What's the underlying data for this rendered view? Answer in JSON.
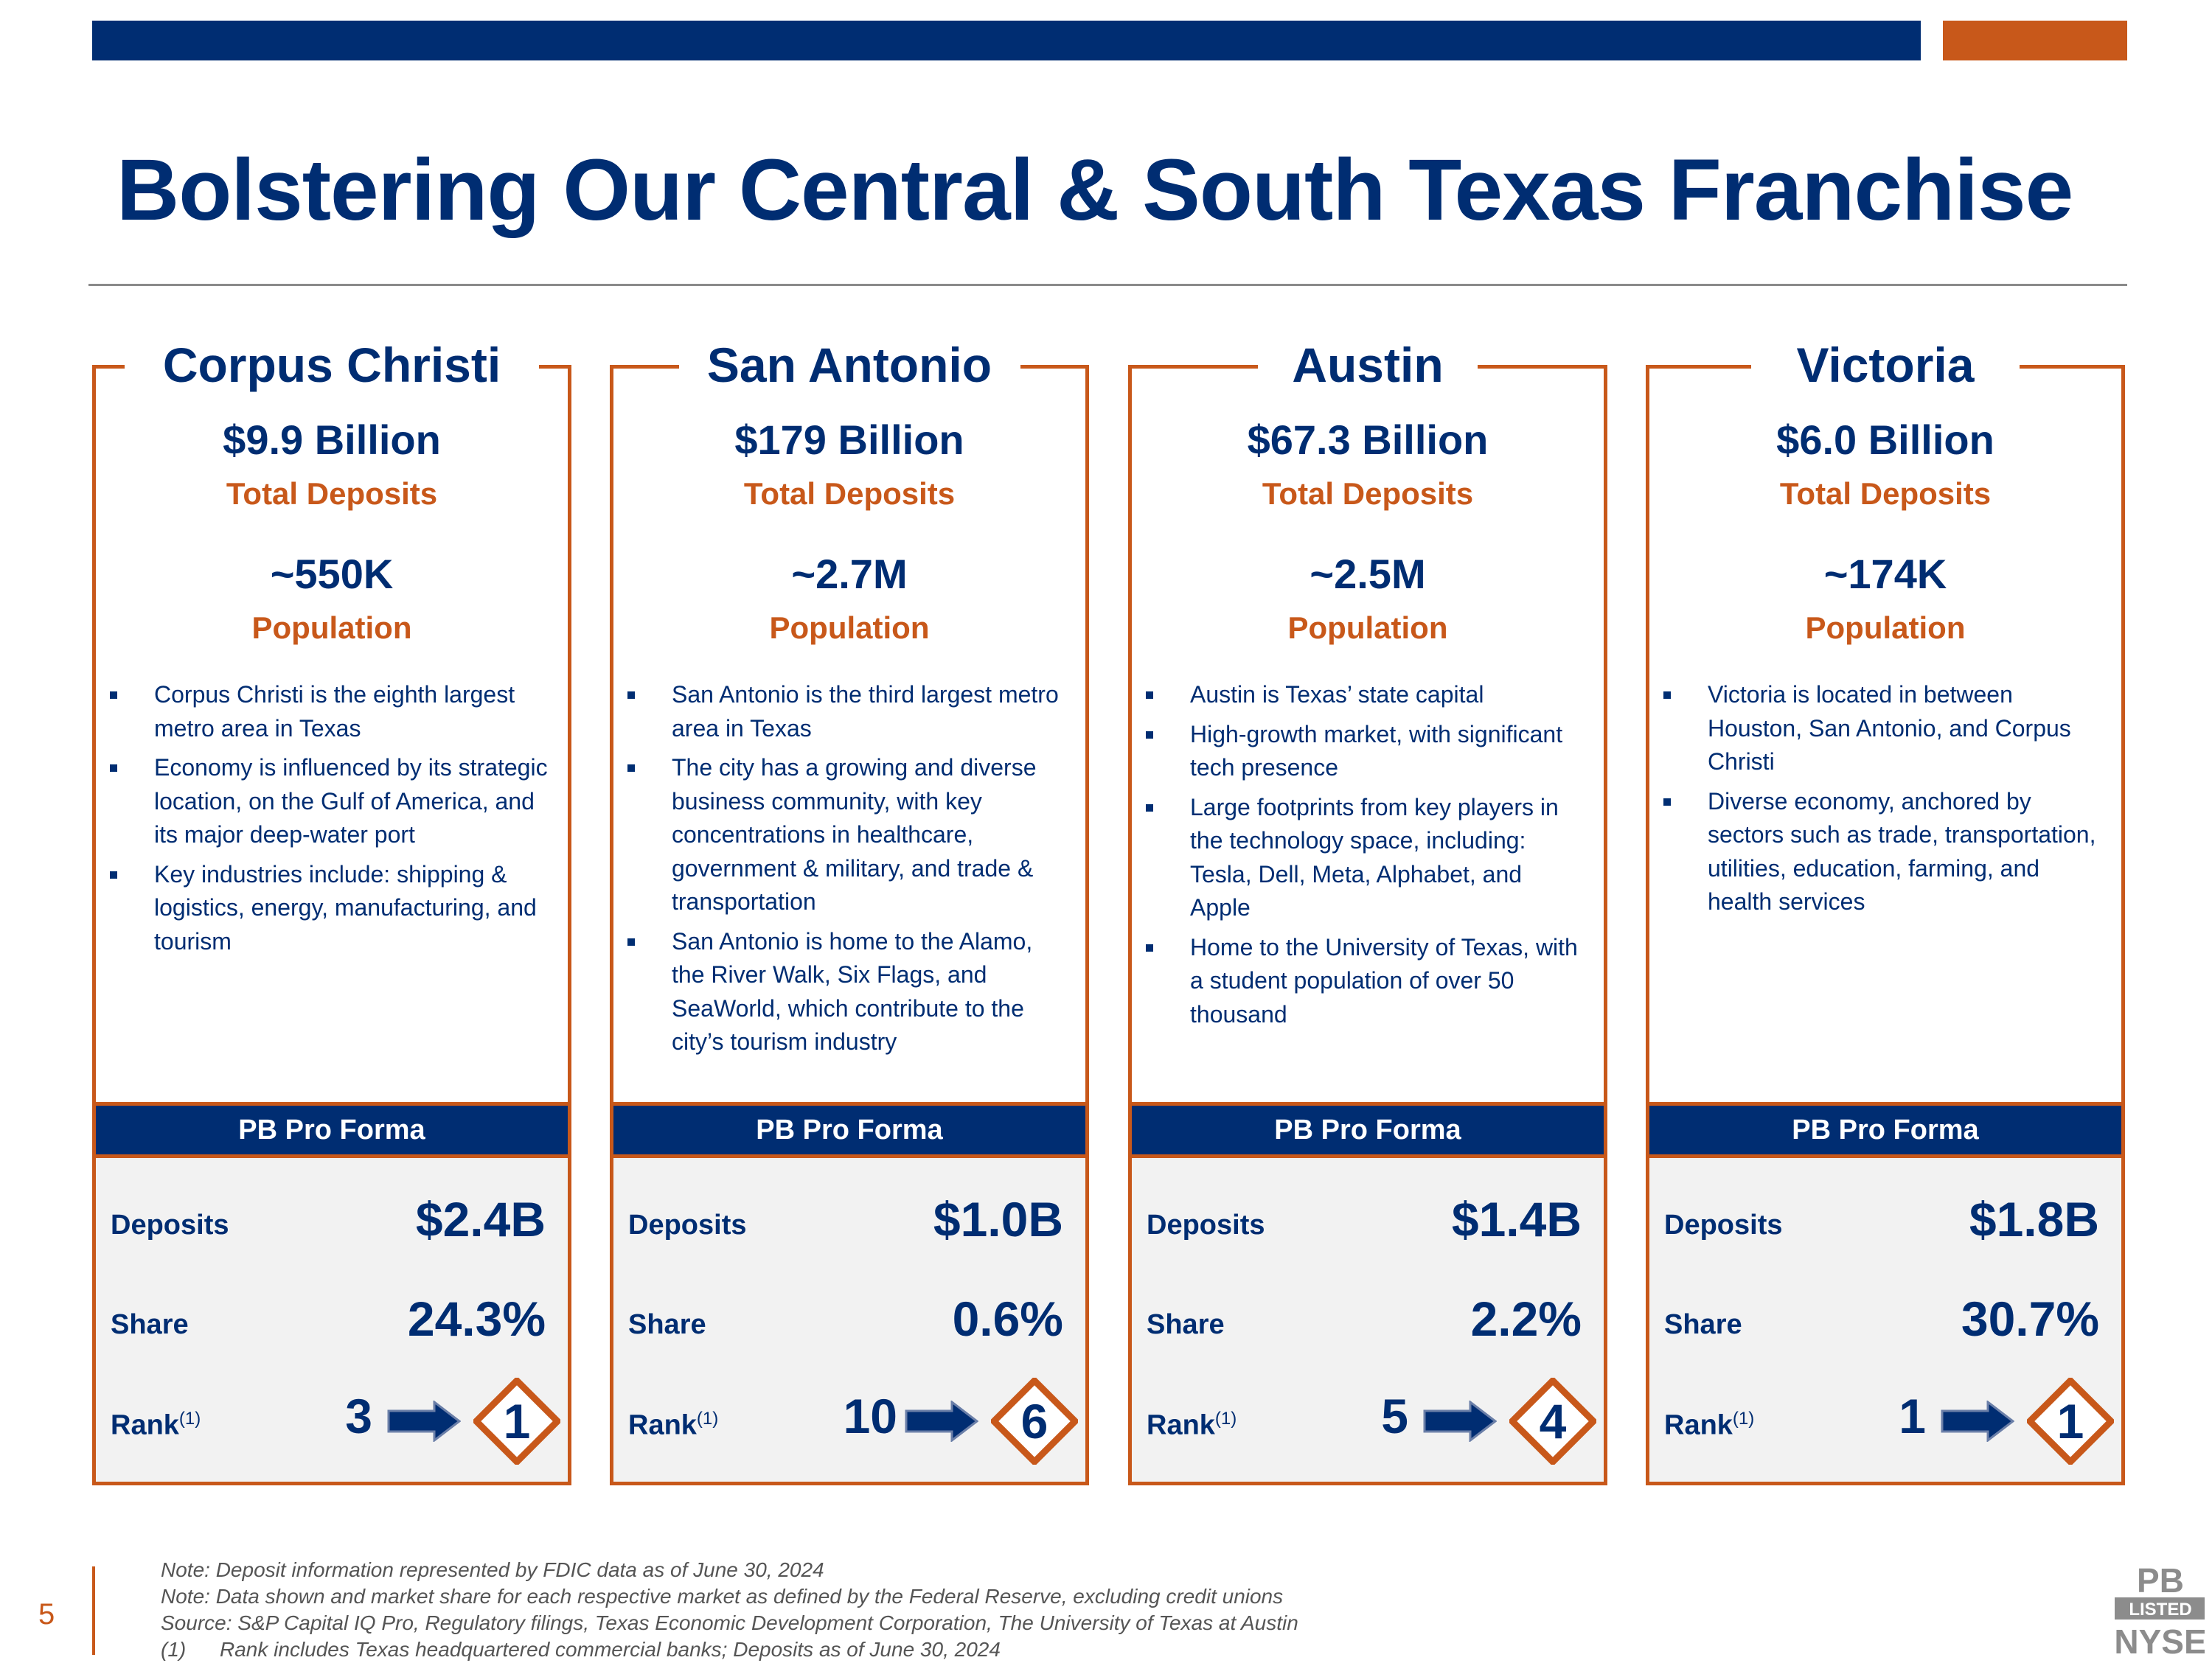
{
  "page": {
    "title": "Bolstering Our Central & South Texas Franchise",
    "page_number": "5"
  },
  "columns": [
    {
      "city": "Corpus Christi",
      "deposits_total": "$9.9 Billion",
      "deposits_label": "Total Deposits",
      "population": "~550K",
      "population_label": "Population",
      "bullets": [
        "Corpus Christi is the eighth largest metro area in Texas",
        "Economy is influenced by its strategic location, on the Gulf of America, and its major deep-water port",
        "Key industries include: shipping & logistics, energy, manufacturing, and tourism"
      ],
      "pro_forma": {
        "header": "PB Pro Forma",
        "deposits_label": "Deposits",
        "deposits": "$2.4B",
        "share_label": "Share",
        "share": "24.3%",
        "rank_label": "Rank",
        "rank_note": "(1)",
        "rank_before": "3",
        "rank_after": "1"
      }
    },
    {
      "city": "San Antonio",
      "deposits_total": "$179 Billion",
      "deposits_label": "Total Deposits",
      "population": "~2.7M",
      "population_label": "Population",
      "bullets": [
        "San Antonio is the third largest metro area in Texas",
        "The city has a growing and diverse business community, with key concentrations in healthcare, government & military, and trade & transportation",
        "San Antonio is home to the Alamo, the River Walk, Six Flags, and SeaWorld, which contribute to the city’s tourism industry"
      ],
      "pro_forma": {
        "header": "PB Pro Forma",
        "deposits_label": "Deposits",
        "deposits": "$1.0B",
        "share_label": "Share",
        "share": "0.6%",
        "rank_label": "Rank",
        "rank_note": "(1)",
        "rank_before": "10",
        "rank_after": "6"
      }
    },
    {
      "city": "Austin",
      "deposits_total": "$67.3 Billion",
      "deposits_label": "Total Deposits",
      "population": "~2.5M",
      "population_label": "Population",
      "bullets": [
        "Austin is Texas’ state capital",
        "High-growth market, with significant tech presence",
        "Large footprints from key players in the technology space, including: Tesla, Dell, Meta, Alphabet, and Apple",
        "Home to the University of Texas, with a student population of over 50 thousand"
      ],
      "pro_forma": {
        "header": "PB Pro Forma",
        "deposits_label": "Deposits",
        "deposits": "$1.4B",
        "share_label": "Share",
        "share": "2.2%",
        "rank_label": "Rank",
        "rank_note": "(1)",
        "rank_before": "5",
        "rank_after": "4"
      }
    },
    {
      "city": "Victoria",
      "deposits_total": "$6.0 Billion",
      "deposits_label": "Total Deposits",
      "population": "~174K",
      "population_label": "Population",
      "bullets": [
        "Victoria is located in between Houston, San Antonio, and Corpus Christi",
        "Diverse economy, anchored by sectors such as trade, transportation, utilities, education, farming, and health services"
      ],
      "pro_forma": {
        "header": "PB Pro Forma",
        "deposits_label": "Deposits",
        "deposits": "$1.8B",
        "share_label": "Share",
        "share": "30.7%",
        "rank_label": "Rank",
        "rank_note": "(1)",
        "rank_before": "1",
        "rank_after": "1"
      }
    }
  ],
  "footnotes": {
    "note1": "Note: Deposit information represented by FDIC data as of June 30, 2024",
    "note2": "Note: Data shown and market share for each respective market as defined by the Federal Reserve, excluding credit unions",
    "source": "Source: S&P Capital IQ Pro, Regulatory filings, Texas Economic Development Corporation, The University of Texas at Austin",
    "fn1_marker": "(1)",
    "fn1_text": "Rank includes Texas headquartered commercial banks; Deposits as of June 30, 2024"
  },
  "logo": {
    "line1": "PB",
    "line2": "LISTED",
    "line3": "NYSE"
  },
  "colors": {
    "navy": "#002d72",
    "orange": "#c8581a",
    "panel": "#f2f2f2"
  }
}
